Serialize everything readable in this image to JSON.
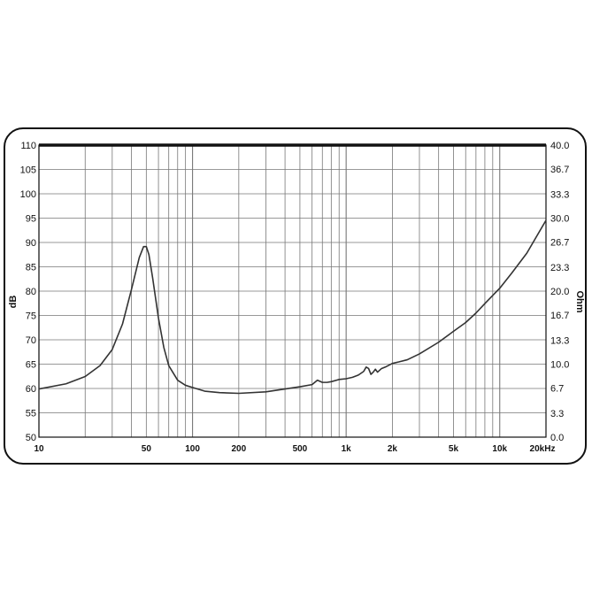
{
  "chart_data": {
    "type": "line",
    "title": "",
    "xlabel": "",
    "ylabel": "dB",
    "y2label": "Ohm",
    "x_scale": "log",
    "xlim": [
      10,
      20000
    ],
    "ylim": [
      50,
      110
    ],
    "y2lim": [
      0.0,
      40.0
    ],
    "grid": true,
    "colors": {
      "curve": "#333333",
      "grid": "#777777",
      "border": "#111111"
    },
    "x_ticks": [
      {
        "value": 10,
        "label": "10"
      },
      {
        "value": 50,
        "label": "50"
      },
      {
        "value": 100,
        "label": "100"
      },
      {
        "value": 200,
        "label": "200"
      },
      {
        "value": 500,
        "label": "500"
      },
      {
        "value": 1000,
        "label": "1k"
      },
      {
        "value": 2000,
        "label": "2k"
      },
      {
        "value": 5000,
        "label": "5k"
      },
      {
        "value": 10000,
        "label": "10k"
      },
      {
        "value": 20000,
        "label": "20kHz"
      }
    ],
    "y_ticks": [
      {
        "value": 110,
        "label": "110"
      },
      {
        "value": 105,
        "label": "105"
      },
      {
        "value": 100,
        "label": "100"
      },
      {
        "value": 95,
        "label": "95"
      },
      {
        "value": 90,
        "label": "90"
      },
      {
        "value": 85,
        "label": "85"
      },
      {
        "value": 80,
        "label": "80"
      },
      {
        "value": 75,
        "label": "75"
      },
      {
        "value": 70,
        "label": "70"
      },
      {
        "value": 65,
        "label": "65"
      },
      {
        "value": 60,
        "label": "60"
      },
      {
        "value": 55,
        "label": "55"
      },
      {
        "value": 50,
        "label": "50"
      }
    ],
    "y2_ticks": [
      {
        "value": 40.0,
        "label": "40.0"
      },
      {
        "value": 36.7,
        "label": "36.7"
      },
      {
        "value": 33.3,
        "label": "33.3"
      },
      {
        "value": 30.0,
        "label": "30.0"
      },
      {
        "value": 26.7,
        "label": "26.7"
      },
      {
        "value": 23.3,
        "label": "23.3"
      },
      {
        "value": 20.0,
        "label": "20.0"
      },
      {
        "value": 16.7,
        "label": "16.7"
      },
      {
        "value": 13.3,
        "label": "13.3"
      },
      {
        "value": 10.0,
        "label": "10.0"
      },
      {
        "value": 6.7,
        "label": "6.7"
      },
      {
        "value": 3.3,
        "label": "3.3"
      },
      {
        "value": 0.0,
        "label": "0.0"
      }
    ],
    "series": [
      {
        "axis": "right",
        "x": [
          10,
          15,
          20,
          25,
          30,
          35,
          40,
          45,
          48,
          50,
          52,
          55,
          60,
          65,
          70,
          80,
          90,
          100,
          120,
          150,
          200,
          300,
          400,
          500,
          600,
          650,
          700,
          750,
          800,
          900,
          1000,
          1100,
          1200,
          1300,
          1350,
          1400,
          1450,
          1500,
          1550,
          1600,
          1700,
          1800,
          2000,
          2200,
          2500,
          3000,
          4000,
          5000,
          6000,
          7000,
          8000,
          10000,
          12000,
          15000,
          20000
        ],
        "values": [
          6.6,
          7.3,
          8.3,
          9.8,
          12.0,
          15.5,
          20.2,
          24.6,
          26.1,
          26.1,
          25.0,
          21.8,
          16.3,
          12.3,
          9.8,
          7.8,
          7.1,
          6.8,
          6.3,
          6.1,
          6.0,
          6.2,
          6.6,
          6.9,
          7.2,
          7.8,
          7.5,
          7.5,
          7.6,
          7.9,
          8.0,
          8.2,
          8.5,
          9.0,
          9.6,
          9.4,
          8.6,
          8.9,
          9.3,
          8.9,
          9.4,
          9.6,
          10.1,
          10.3,
          10.6,
          11.4,
          13.0,
          14.5,
          15.7,
          17.0,
          18.3,
          20.4,
          22.5,
          25.2,
          29.7
        ]
      }
    ]
  }
}
